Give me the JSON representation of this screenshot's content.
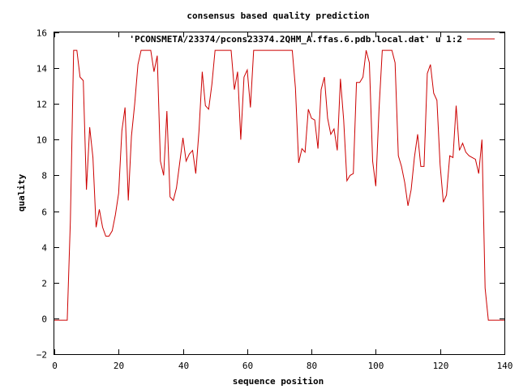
{
  "chart_data": {
    "type": "line",
    "title": "consensus based quality prediction",
    "xlabel": "sequence position",
    "ylabel": "quality",
    "xlim": [
      0,
      140
    ],
    "ylim": [
      -2,
      16
    ],
    "xticks": [
      0,
      20,
      40,
      60,
      80,
      100,
      120,
      140
    ],
    "yticks": [
      -2,
      0,
      2,
      4,
      6,
      8,
      10,
      12,
      14,
      16
    ],
    "grid": false,
    "legend": "top-right",
    "series": [
      {
        "name": "'PCONSMETA/23374/pcons23374.2QHM_A.ffas.6.pdb.local.dat' u 1:2",
        "color": "#cc0000",
        "x": [
          0,
          1,
          2,
          3,
          4,
          5,
          6,
          7,
          8,
          9,
          10,
          11,
          12,
          13,
          14,
          15,
          16,
          17,
          18,
          19,
          20,
          21,
          22,
          23,
          24,
          25,
          26,
          27,
          28,
          29,
          30,
          31,
          32,
          33,
          34,
          35,
          36,
          37,
          38,
          39,
          40,
          41,
          42,
          43,
          44,
          45,
          46,
          47,
          48,
          49,
          50,
          51,
          52,
          53,
          54,
          55,
          56,
          57,
          58,
          59,
          60,
          61,
          62,
          63,
          64,
          65,
          66,
          67,
          68,
          69,
          70,
          71,
          72,
          73,
          74,
          75,
          76,
          77,
          78,
          79,
          80,
          81,
          82,
          83,
          84,
          85,
          86,
          87,
          88,
          89,
          90,
          91,
          92,
          93,
          94,
          95,
          96,
          97,
          98,
          99,
          100,
          101,
          102,
          103,
          104,
          105,
          106,
          107,
          108,
          109,
          110,
          111,
          112,
          113,
          114,
          115,
          116,
          117,
          118,
          119,
          120,
          121,
          122,
          123,
          124,
          125,
          126,
          127,
          128,
          129,
          130,
          131,
          132,
          133,
          134,
          135,
          136,
          137,
          138,
          139,
          140
        ],
        "y": [
          -0.1,
          -0.1,
          -0.1,
          -0.1,
          -0.1,
          5.5,
          15,
          15,
          13.5,
          13.3,
          7.2,
          10.7,
          9,
          5.1,
          6.1,
          5.1,
          4.6,
          4.6,
          4.9,
          5.8,
          7,
          10.5,
          11.8,
          6.6,
          10.2,
          12,
          14.2,
          15,
          15,
          15,
          15,
          13.8,
          14.7,
          8.8,
          8,
          11.6,
          6.8,
          6.6,
          7.3,
          8.7,
          10.1,
          8.8,
          9.2,
          9.4,
          8.1,
          10.5,
          13.8,
          11.9,
          11.7,
          13.1,
          15,
          15,
          15,
          15,
          15,
          15,
          12.8,
          13.8,
          10,
          13.5,
          13.9,
          11.8,
          15,
          15,
          15,
          15,
          15,
          15,
          15,
          15,
          15,
          15,
          15,
          15,
          15,
          12.9,
          8.7,
          9.5,
          9.3,
          11.7,
          11.2,
          11.1,
          9.5,
          12.8,
          13.5,
          11.2,
          10.3,
          10.6,
          9.4,
          13.4,
          11.1,
          7.7,
          8,
          8.1,
          13.2,
          13.2,
          13.5,
          15,
          14.3,
          8.8,
          7.4,
          11.7,
          15,
          15,
          15,
          15,
          14.3,
          9.1,
          8.5,
          7.6,
          6.3,
          7.2,
          9,
          10.3,
          8.5,
          8.5,
          13.7,
          14.2,
          12.6,
          12.2,
          8.6,
          6.5,
          6.9,
          9.1,
          9,
          11.9,
          9.4,
          9.8,
          9.3,
          9.1,
          9,
          8.9,
          8.1,
          10,
          1.7,
          -0.1,
          -0.1,
          -0.1,
          -0.1,
          -0.1,
          -0.1
        ]
      }
    ]
  }
}
